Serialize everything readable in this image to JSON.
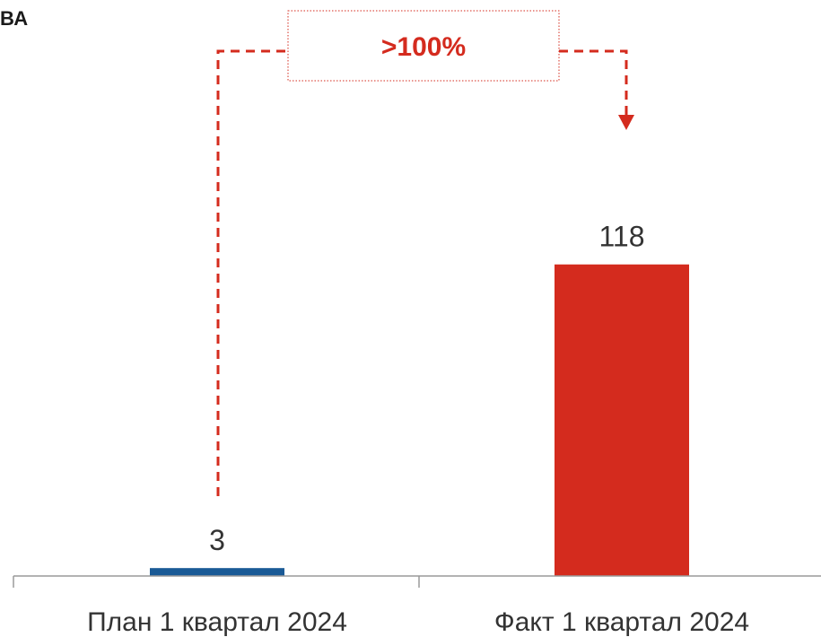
{
  "header_fragment": "ВА",
  "chart_data": {
    "type": "bar",
    "categories": [
      "План 1 квартал 2024",
      "Факт 1 квартал 2024"
    ],
    "values": [
      3,
      118
    ],
    "data_labels": [
      "3",
      "118"
    ],
    "bar_colors": [
      "#1a5a96",
      "#d42b1e"
    ],
    "ylim": [
      0,
      140
    ],
    "grid": false,
    "annotation": {
      "text": ">100%",
      "color": "#d42b1e"
    }
  }
}
